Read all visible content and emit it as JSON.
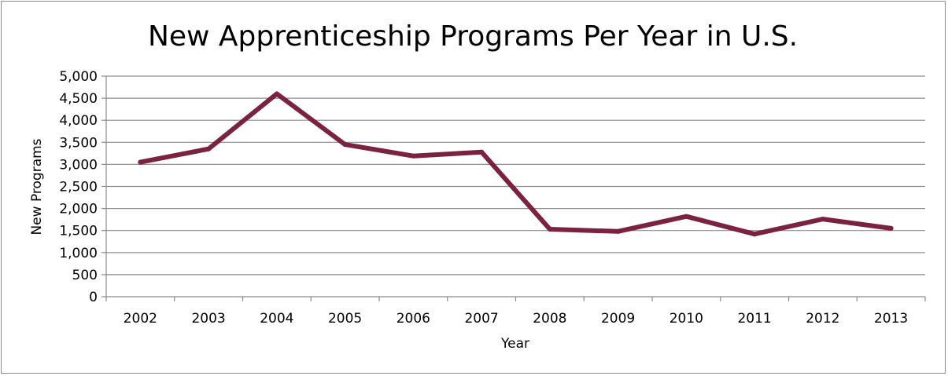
{
  "chart_data": {
    "type": "line",
    "title": "New Apprenticeship Programs Per Year in U.S.",
    "xlabel": "Year",
    "ylabel": "New Programs",
    "categories": [
      "2002",
      "2003",
      "2004",
      "2005",
      "2006",
      "2007",
      "2008",
      "2009",
      "2010",
      "2011",
      "2012",
      "2013"
    ],
    "series": [
      {
        "values": [
          3050,
          3350,
          4600,
          3450,
          3190,
          3280,
          1530,
          1480,
          1820,
          1420,
          1760,
          1550
        ],
        "color": "#7b2141"
      }
    ],
    "ylim": [
      0,
      5000
    ],
    "yticks": [
      0,
      500,
      1000,
      1500,
      2000,
      2500,
      3000,
      3500,
      4000,
      4500,
      5000
    ],
    "ytick_labels": [
      "0",
      "500",
      "1,000",
      "1,500",
      "2,000",
      "2,500",
      "3,000",
      "3,500",
      "4,000",
      "4,500",
      "5,000"
    ],
    "grid": true,
    "legend": "none"
  }
}
